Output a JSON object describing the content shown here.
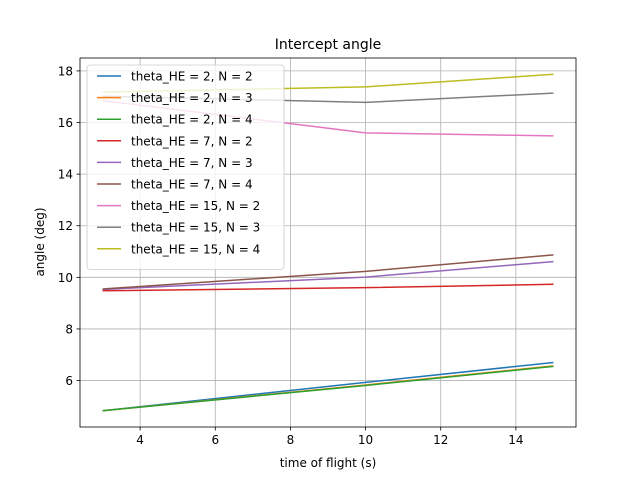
{
  "chart_data": {
    "type": "line",
    "title": "Intercept angle",
    "xlabel": "time of flight (s)",
    "ylabel": "angle (deg)",
    "xlim": [
      2.4,
      15.6
    ],
    "ylim": [
      4.2,
      18.5
    ],
    "xticks": [
      4,
      6,
      8,
      10,
      12,
      14
    ],
    "yticks": [
      6,
      8,
      10,
      12,
      14,
      16,
      18
    ],
    "grid": true,
    "legend_position": "upper-left",
    "x": [
      3,
      10,
      15
    ],
    "series": [
      {
        "name": "theta_HE = 2, N = 2",
        "color": "#1f77b4",
        "values": [
          4.83,
          5.93,
          6.7
        ]
      },
      {
        "name": "theta_HE = 2, N = 3",
        "color": "#ff7f0e",
        "values": [
          4.83,
          5.83,
          6.57
        ]
      },
      {
        "name": "theta_HE = 2, N = 4",
        "color": "#2ca02c",
        "values": [
          4.83,
          5.81,
          6.55
        ]
      },
      {
        "name": "theta_HE = 7, N = 2",
        "color": "#d62728",
        "values": [
          9.48,
          9.6,
          9.73
        ]
      },
      {
        "name": "theta_HE = 7, N = 3",
        "color": "#9467bd",
        "values": [
          9.53,
          10.01,
          10.61
        ]
      },
      {
        "name": "theta_HE = 7, N = 4",
        "color": "#8c564b",
        "values": [
          9.55,
          10.23,
          10.87
        ]
      },
      {
        "name": "theta_HE = 15, N = 2",
        "color": "#e377c2",
        "values": [
          16.85,
          15.6,
          15.48
        ]
      },
      {
        "name": "theta_HE = 15, N = 3",
        "color": "#7f7f7f",
        "values": [
          17.02,
          16.78,
          17.14
        ]
      },
      {
        "name": "theta_HE = 15, N = 4",
        "color": "#bcbd22",
        "values": [
          17.18,
          17.38,
          17.87
        ]
      }
    ]
  }
}
